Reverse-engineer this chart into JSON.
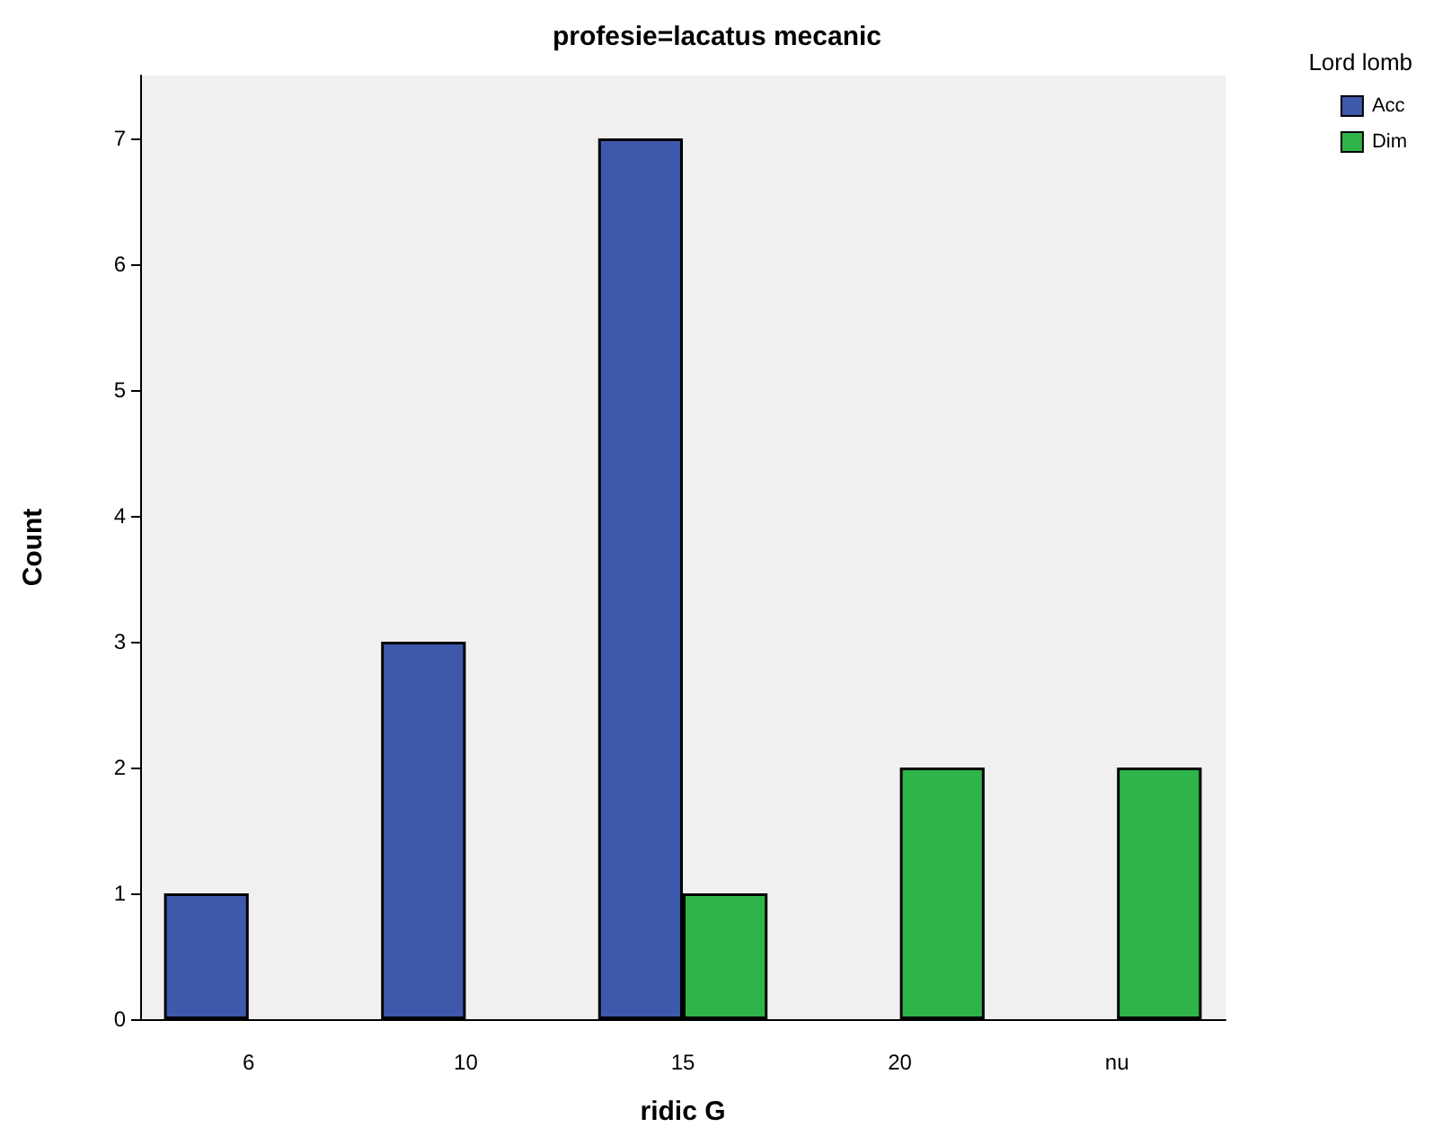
{
  "chart_data": {
    "type": "bar",
    "title": "profesie=lacatus mecanic",
    "xlabel": "ridic G",
    "ylabel": "Count",
    "legend_title": "Lord lomb",
    "categories": [
      "6",
      "10",
      "15",
      "20",
      "nu"
    ],
    "series": [
      {
        "name": "Acc",
        "color": "#3e58ac",
        "values": [
          1,
          3,
          7,
          null,
          null
        ]
      },
      {
        "name": "Dim",
        "color": "#2fb44a",
        "values": [
          null,
          null,
          1,
          2,
          2
        ]
      }
    ],
    "ylim": [
      0,
      7.5
    ],
    "yticks": [
      0,
      1,
      2,
      3,
      4,
      5,
      6,
      7
    ],
    "grid": false,
    "legend": "top right"
  }
}
